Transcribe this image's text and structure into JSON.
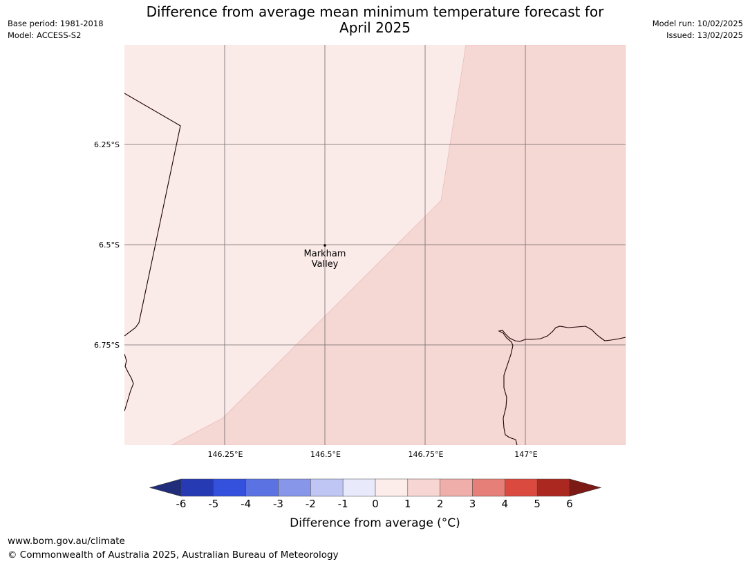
{
  "title": {
    "line1": "Difference from average mean minimum temperature forecast for",
    "line2": "April 2025"
  },
  "meta_left": {
    "base_period": "Base period: 1981-2018",
    "model": "Model: ACCESS-S2"
  },
  "meta_right": {
    "model_run": "Model run: 10/02/2025",
    "issued": "Issued: 13/02/2025"
  },
  "map": {
    "region": "Markham Valley, Papua New Guinea",
    "extent": {
      "lon_min": 146.0,
      "lon_max": 147.25,
      "lat_north": -6.0,
      "lat_south": -7.0
    },
    "latitude_labels": [
      "6.25°S",
      "6.5°S",
      "6.75°S"
    ],
    "longitude_labels": [
      "146.25°E",
      "146.5°E",
      "146.75°E",
      "147°E"
    ],
    "place": {
      "name_line1": "Markham",
      "name_line2": "Valley",
      "lon": 146.5,
      "lat": -6.5
    },
    "zones": [
      {
        "category": "0 to 1",
        "color": "#faeae8"
      },
      {
        "category": "1 to 2",
        "color": "#f5d7d4"
      }
    ],
    "colors": {
      "grid": "#555555",
      "coast": "#1a0000"
    }
  },
  "colorbar": {
    "label": "Difference from average ( °C)",
    "label_text": "Difference from average (°C)",
    "ticks": [
      "-6",
      "-5",
      "-4",
      "-3",
      "-2",
      "-1",
      "0",
      "1",
      "2",
      "3",
      "4",
      "5",
      "6"
    ],
    "colors": [
      "#1f2d7a",
      "#263ab3",
      "#3351dd",
      "#5b72e2",
      "#8896ea",
      "#bfc6f3",
      "#e8eafc",
      "#fcecea",
      "#f7d5d2",
      "#efaea9",
      "#e67f77",
      "#db4a3f",
      "#ab2820",
      "#7c1a16"
    ]
  },
  "footer": {
    "url": "www.bom.gov.au/climate",
    "copyright": "© Commonwealth of Australia 2025, Australian Bureau of Meteorology"
  }
}
